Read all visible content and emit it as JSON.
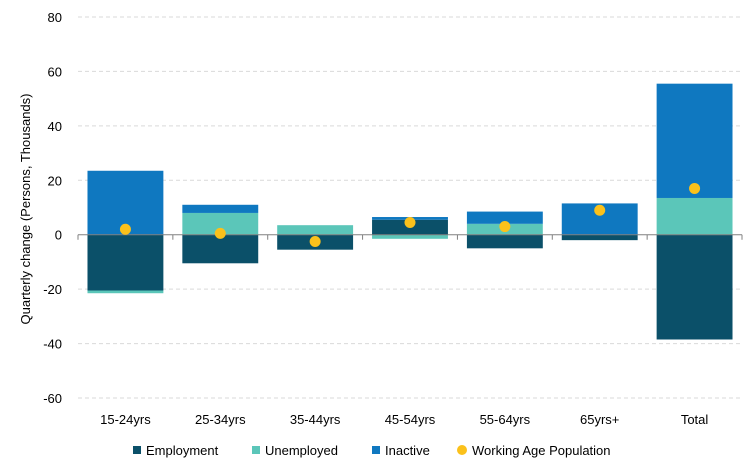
{
  "chart_data": {
    "type": "bar",
    "stacked": true,
    "categories": [
      "15-24yrs",
      "25-34yrs",
      "35-44yrs",
      "45-54yrs",
      "55-64yrs",
      "65yrs+",
      "Total"
    ],
    "series": [
      {
        "name": "Employment",
        "color": "#0b5069",
        "values": [
          -20.5,
          -10.5,
          -5.5,
          5.5,
          -5.0,
          -2.0,
          -38.5
        ]
      },
      {
        "name": "Unemployed",
        "color": "#5bc6b9",
        "values": [
          -1.0,
          8.0,
          3.5,
          -1.5,
          4.0,
          0.0,
          13.5
        ]
      },
      {
        "name": "Inactive",
        "color": "#0f78c0",
        "values": [
          23.5,
          3.0,
          0.0,
          1.0,
          4.5,
          11.5,
          42.0
        ]
      }
    ],
    "points": {
      "name": "Working Age Population",
      "color": "#fbc11b",
      "values": [
        2.0,
        0.5,
        -2.5,
        4.5,
        3.0,
        9.0,
        17.0
      ]
    },
    "ylabel": "Quarterly change (Persons, Thousands)",
    "xlabel": "",
    "ylim": [
      -60,
      80
    ],
    "yticks": [
      -60,
      -40,
      -20,
      0,
      20,
      40,
      60,
      80
    ],
    "grid": true,
    "legend_position": "bottom"
  }
}
